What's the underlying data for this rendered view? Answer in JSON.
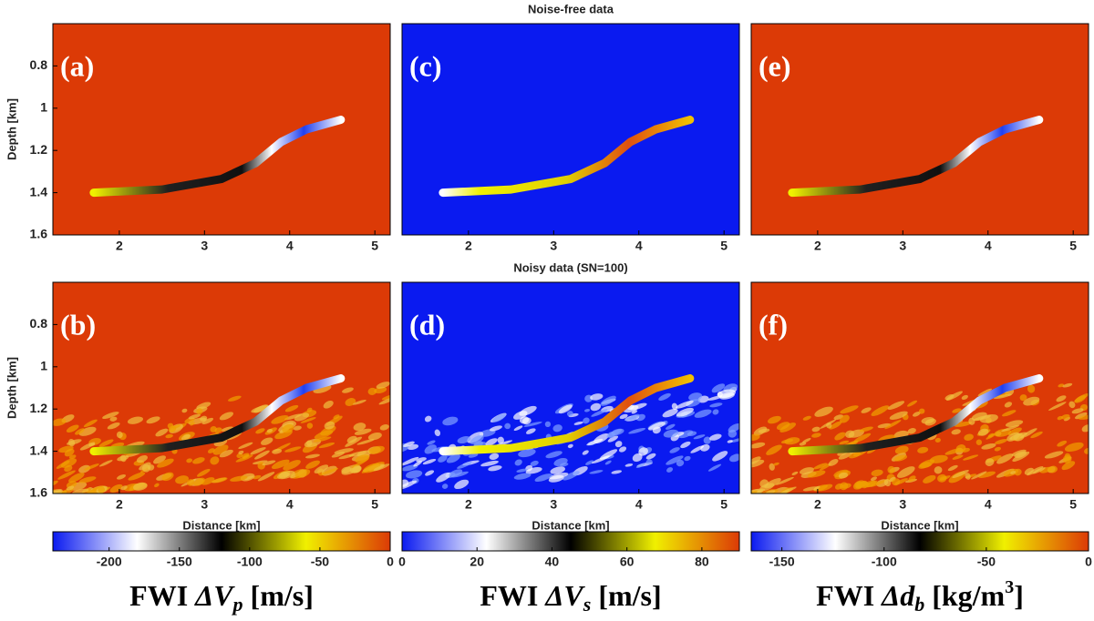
{
  "chart_data": [
    {
      "type": "heatmap",
      "label": "(a)",
      "xlim": [
        1.22,
        5.18
      ],
      "ylim": [
        1.6,
        0.6
      ],
      "xticks": [
        2,
        3,
        4,
        5
      ],
      "yticks": [
        0.8,
        1,
        1.2,
        1.4,
        1.6
      ],
      "ylabel": "Depth [km]",
      "background": "#dc3a06"
    },
    {
      "type": "heatmap",
      "label": "(b)",
      "xlim": [
        1.22,
        5.18
      ],
      "ylim": [
        1.6,
        0.6
      ],
      "xticks": [
        2,
        3,
        4,
        5
      ],
      "yticks": [
        0.8,
        1,
        1.2,
        1.4,
        1.6
      ],
      "ylabel": "Depth [km]",
      "xlabel": "Distance [km]",
      "background": "#dc3a06",
      "noisy": true
    },
    {
      "type": "heatmap",
      "label": "(c)",
      "title": "Noise-free data",
      "xlim": [
        1.22,
        5.18
      ],
      "ylim": [
        1.6,
        0.6
      ],
      "xticks": [
        2,
        3,
        4,
        5
      ],
      "background": "#0a1af0"
    },
    {
      "type": "heatmap",
      "label": "(d)",
      "title": "Noisy data (SN=100)",
      "xlim": [
        1.22,
        5.18
      ],
      "ylim": [
        1.6,
        0.6
      ],
      "xticks": [
        2,
        3,
        4,
        5
      ],
      "xlabel": "Distance [km]",
      "background": "#0a1af0",
      "noisy": true
    },
    {
      "type": "heatmap",
      "label": "(e)",
      "xlim": [
        1.22,
        5.18
      ],
      "ylim": [
        1.6,
        0.6
      ],
      "xticks": [
        2,
        3,
        4,
        5
      ],
      "background": "#dc3a06"
    },
    {
      "type": "heatmap",
      "label": "(f)",
      "xlim": [
        1.22,
        5.18
      ],
      "ylim": [
        1.6,
        0.6
      ],
      "xticks": [
        2,
        3,
        4,
        5
      ],
      "xlabel": "Distance [km]",
      "background": "#dc3a06",
      "noisy": true
    },
    {
      "type": "colorbar",
      "clim": [
        -240,
        0
      ],
      "ticks": [
        -200,
        -150,
        -100,
        -50,
        0
      ],
      "colors": [
        "#0a1af0",
        "#ffffff",
        "#000000",
        "#f0f000",
        "#dc3a06"
      ],
      "label_parts": [
        "FWI ",
        "ΔV",
        "p",
        " [m/s]"
      ]
    },
    {
      "type": "colorbar",
      "clim": [
        0,
        90
      ],
      "ticks": [
        0,
        20,
        40,
        60,
        80
      ],
      "colors": [
        "#0a1af0",
        "#ffffff",
        "#000000",
        "#f0f000",
        "#dc3a06"
      ],
      "label_parts": [
        "FWI ",
        "ΔV",
        "s",
        " [m/s]"
      ]
    },
    {
      "type": "colorbar",
      "clim": [
        -165,
        0
      ],
      "ticks": [
        -150,
        -100,
        -50,
        0
      ],
      "colors": [
        "#0a1af0",
        "#ffffff",
        "#000000",
        "#f0f000",
        "#dc3a06"
      ],
      "label_parts": [
        "FWI ",
        "Δd",
        "b",
        " [kg/m",
        "3",
        "]"
      ]
    }
  ]
}
